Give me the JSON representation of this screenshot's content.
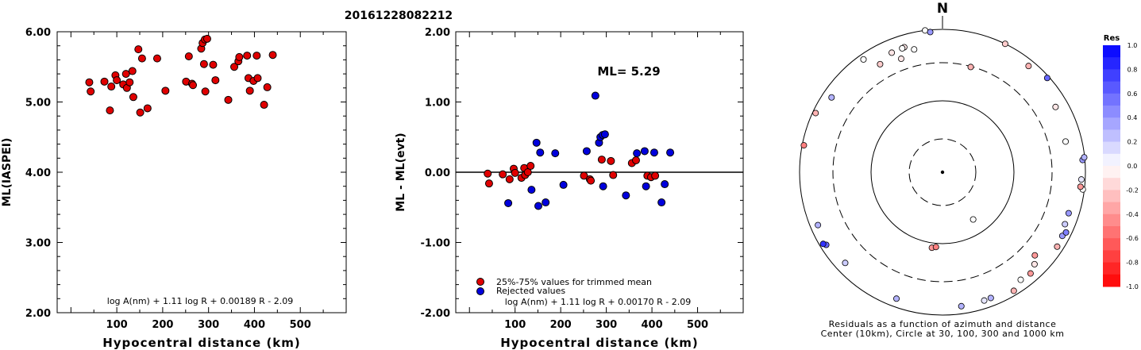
{
  "event_id": "20161228082212",
  "chart_data": [
    {
      "type": "scatter",
      "xlabel": "Hypocentral distance (km)",
      "ylabel": "ML(IASPEI)",
      "xlim": [
        -30,
        600
      ],
      "ylim": [
        2.0,
        6.0
      ],
      "x_ticks": [
        "100",
        "200",
        "300",
        "400",
        "500"
      ],
      "y_ticks": [
        "2.00",
        "3.00",
        "4.00",
        "5.00",
        "6.00"
      ],
      "formula": "log A(nm) + 1.11 log R + 0.00189 R - 2.09",
      "marker_color": "#e00000",
      "points": [
        [
          40,
          5.28
        ],
        [
          43,
          5.15
        ],
        [
          73,
          5.29
        ],
        [
          85,
          4.88
        ],
        [
          88,
          5.22
        ],
        [
          97,
          5.38
        ],
        [
          100,
          5.31
        ],
        [
          114,
          5.25
        ],
        [
          120,
          5.4
        ],
        [
          122,
          5.2
        ],
        [
          128,
          5.28
        ],
        [
          134,
          5.44
        ],
        [
          136,
          5.07
        ],
        [
          147,
          5.75
        ],
        [
          151,
          4.85
        ],
        [
          155,
          5.62
        ],
        [
          167,
          4.91
        ],
        [
          188,
          5.62
        ],
        [
          206,
          5.16
        ],
        [
          251,
          5.29
        ],
        [
          257,
          5.65
        ],
        [
          264,
          5.26
        ],
        [
          266,
          5.24
        ],
        [
          284,
          5.76
        ],
        [
          287,
          5.84
        ],
        [
          290,
          5.54
        ],
        [
          292,
          5.89
        ],
        [
          293,
          5.15
        ],
        [
          297,
          5.9
        ],
        [
          310,
          5.53
        ],
        [
          315,
          5.31
        ],
        [
          343,
          5.03
        ],
        [
          356,
          5.5
        ],
        [
          365,
          5.58
        ],
        [
          367,
          5.64
        ],
        [
          384,
          5.66
        ],
        [
          387,
          5.34
        ],
        [
          390,
          5.16
        ],
        [
          398,
          5.3
        ],
        [
          405,
          5.66
        ],
        [
          407,
          5.34
        ],
        [
          421,
          4.96
        ],
        [
          428,
          5.21
        ],
        [
          440,
          5.67
        ]
      ]
    },
    {
      "type": "scatter",
      "xlabel": "Hypocentral distance (km)",
      "ylabel": "ML - ML(evt)",
      "xlim": [
        -30,
        600
      ],
      "ylim": [
        -2.0,
        2.0
      ],
      "x_ticks": [
        "100",
        "200",
        "300",
        "400",
        "500"
      ],
      "y_ticks": [
        "-2.00",
        "-1.00",
        "0.00",
        "1.00",
        "2.00"
      ],
      "annotation": "ML= 5.29",
      "formula": "log A(nm) + 1.11 log R + 0.00170 R - 2.09",
      "legend": [
        {
          "label": "25%-75% values for trimmed mean",
          "color": "#e00000"
        },
        {
          "label": "Rejected values",
          "color": "#0000dd"
        }
      ],
      "series": [
        {
          "name": "25%-75% values for trimmed mean",
          "color": "#e00000",
          "points": [
            [
              40,
              -0.02
            ],
            [
              43,
              -0.16
            ],
            [
              73,
              -0.03
            ],
            [
              88,
              -0.1
            ],
            [
              97,
              0.05
            ],
            [
              100,
              -0.01
            ],
            [
              114,
              -0.08
            ],
            [
              120,
              0.06
            ],
            [
              122,
              -0.04
            ],
            [
              128,
              0.0
            ],
            [
              134,
              0.09
            ],
            [
              251,
              -0.05
            ],
            [
              264,
              -0.1
            ],
            [
              266,
              -0.12
            ],
            [
              290,
              0.18
            ],
            [
              310,
              0.16
            ],
            [
              315,
              -0.04
            ],
            [
              356,
              0.13
            ],
            [
              365,
              0.17
            ],
            [
              390,
              -0.05
            ],
            [
              398,
              -0.07
            ],
            [
              407,
              -0.05
            ]
          ]
        },
        {
          "name": "Rejected values",
          "color": "#0000dd",
          "points": [
            [
              85,
              -0.44
            ],
            [
              136,
              -0.25
            ],
            [
              147,
              0.42
            ],
            [
              151,
              -0.48
            ],
            [
              155,
              0.28
            ],
            [
              167,
              -0.43
            ],
            [
              188,
              0.27
            ],
            [
              206,
              -0.18
            ],
            [
              257,
              0.3
            ],
            [
              276,
              1.09
            ],
            [
              284,
              0.42
            ],
            [
              287,
              0.5
            ],
            [
              292,
              0.53
            ],
            [
              293,
              -0.2
            ],
            [
              297,
              0.54
            ],
            [
              343,
              -0.33
            ],
            [
              367,
              0.27
            ],
            [
              384,
              0.3
            ],
            [
              387,
              -0.2
            ],
            [
              405,
              0.28
            ],
            [
              421,
              -0.43
            ],
            [
              428,
              -0.17
            ],
            [
              440,
              0.28
            ]
          ]
        }
      ]
    },
    {
      "type": "scatter",
      "subtype": "polar-azimuth-distance",
      "north_label": "N",
      "caption_line1": "Residuals as a function of azimuth and distance",
      "caption_line2": "Center (10km), Circle at 30, 100, 300 and 1000 km",
      "rings": [
        {
          "label": "30 km",
          "style": "dashed"
        },
        {
          "label": "100 km",
          "style": "solid"
        },
        {
          "label": "300 km",
          "style": "dashed"
        },
        {
          "label": "1000 km",
          "style": "solid"
        }
      ],
      "colorbar": {
        "title": "Res",
        "ticks": [
          "1.0",
          "0.8",
          "0.6",
          "0.4",
          "0.2",
          "0.0",
          "-0.2",
          "-0.4",
          "-0.6",
          "-0.8",
          "-1.0"
        ],
        "max_color": "#0000ff",
        "min_color": "#ff0000"
      },
      "points_note": "azimuth in degrees clockwise from north, distance in km, residual",
      "points": [
        [
          -7,
          1010,
          0.0
        ],
        [
          -5,
          925,
          0.4
        ],
        [
          -17,
          645,
          -0.1
        ],
        [
          -18,
          635,
          0.0
        ],
        [
          -23,
          625,
          -0.1
        ],
        [
          -13,
          545,
          0.0
        ],
        [
          -20,
          450,
          -0.1
        ],
        [
          -30,
          520,
          -0.2
        ],
        [
          -35,
          830,
          0.0
        ],
        [
          -65,
          900,
          -0.3
        ],
        [
          -56,
          720,
          0.3
        ],
        [
          -79,
          940,
          -0.5
        ],
        [
          -113,
          760,
          0.3
        ],
        [
          -122,
          810,
          0.6
        ],
        [
          -121,
          875,
          0.8
        ],
        [
          -133,
          700,
          0.2
        ],
        [
          -160,
          740,
          0.3
        ],
        [
          -172,
          115,
          -0.4
        ],
        [
          -175,
          111,
          -0.5
        ],
        [
          172,
          760,
          0.3
        ],
        [
          162,
          750,
          0.1
        ],
        [
          159,
          745,
          0.3
        ],
        [
          149,
          850,
          -0.3
        ],
        [
          139,
          730,
          -0.4
        ],
        [
          144,
          700,
          0.0
        ],
        [
          132,
          510,
          -0.4
        ],
        [
          135,
          630,
          -0.1
        ],
        [
          123,
          800,
          -0.3
        ],
        [
          118,
          770,
          0.4
        ],
        [
          116,
          820,
          0.5
        ],
        [
          113,
          700,
          0.2
        ],
        [
          108,
          690,
          0.4
        ],
        [
          93,
          870,
          0.1
        ],
        [
          97,
          945,
          0.0
        ],
        [
          96,
          860,
          -0.4
        ],
        [
          85,
          920,
          0.4
        ],
        [
          84,
          985,
          0.3
        ],
        [
          76,
          560,
          0.0
        ],
        [
          60,
          640,
          -0.1
        ],
        [
          48,
          930,
          0.6
        ],
        [
          39,
          800,
          -0.3
        ],
        [
          26,
          1000,
          -0.2
        ],
        [
          15,
          295,
          -0.3
        ],
        [
          147,
          62,
          0.0
        ]
      ]
    }
  ]
}
